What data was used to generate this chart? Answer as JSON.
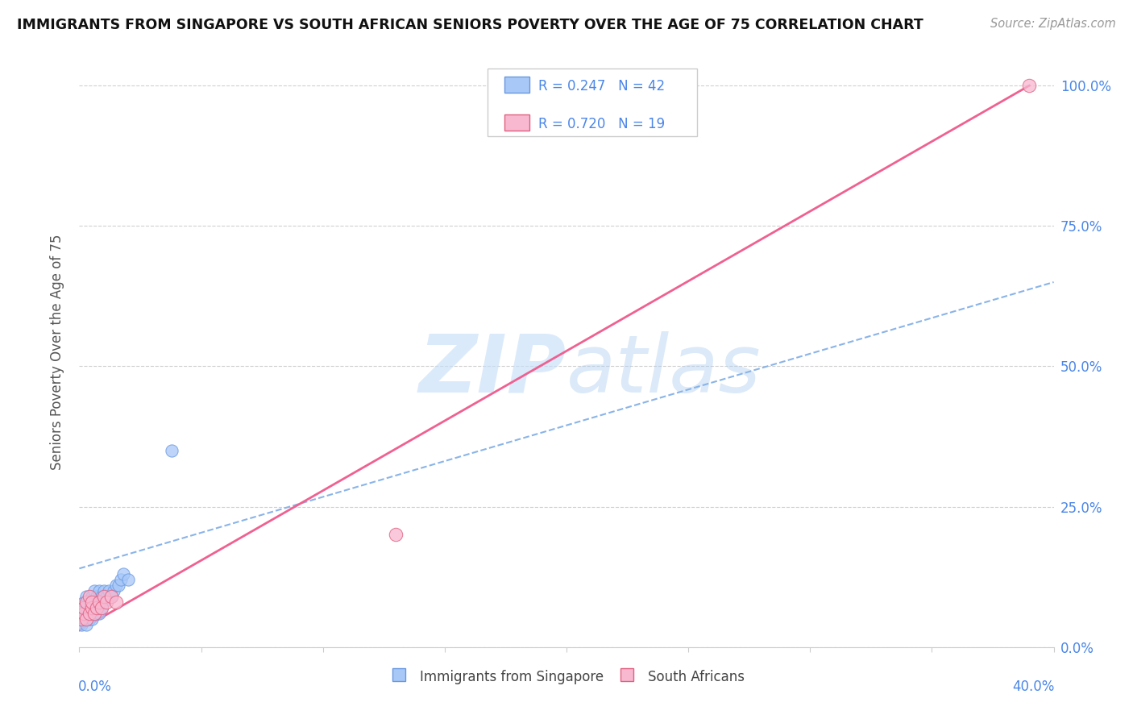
{
  "title": "IMMIGRANTS FROM SINGAPORE VS SOUTH AFRICAN SENIORS POVERTY OVER THE AGE OF 75 CORRELATION CHART",
  "source": "Source: ZipAtlas.com",
  "ylabel": "Seniors Poverty Over the Age of 75",
  "y_tick_vals": [
    0.0,
    0.25,
    0.5,
    0.75,
    1.0
  ],
  "y_tick_labels": [
    "0.0%",
    "25.0%",
    "50.0%",
    "75.0%",
    "100.0%"
  ],
  "xlim": [
    0.0,
    0.4
  ],
  "ylim": [
    0.0,
    1.05
  ],
  "legend_line1": "R = 0.247   N = 42",
  "legend_line2": "R = 0.720   N = 19",
  "color_blue_fill": "#a8c8f8",
  "color_blue_edge": "#6898e0",
  "color_pink_fill": "#f8b8d0",
  "color_pink_edge": "#e06080",
  "color_trend_blue": "#8ab4e8",
  "color_trend_pink": "#f06090",
  "color_axis_label": "#4a86e8",
  "blue_scatter_x": [
    0.001,
    0.001,
    0.002,
    0.002,
    0.002,
    0.003,
    0.003,
    0.003,
    0.003,
    0.003,
    0.004,
    0.004,
    0.004,
    0.004,
    0.005,
    0.005,
    0.005,
    0.005,
    0.006,
    0.006,
    0.006,
    0.006,
    0.007,
    0.007,
    0.007,
    0.008,
    0.008,
    0.008,
    0.009,
    0.009,
    0.01,
    0.01,
    0.011,
    0.012,
    0.013,
    0.014,
    0.015,
    0.016,
    0.017,
    0.018,
    0.02,
    0.038
  ],
  "blue_scatter_y": [
    0.04,
    0.06,
    0.05,
    0.07,
    0.08,
    0.04,
    0.06,
    0.07,
    0.08,
    0.09,
    0.05,
    0.06,
    0.07,
    0.08,
    0.05,
    0.07,
    0.08,
    0.09,
    0.06,
    0.07,
    0.08,
    0.1,
    0.07,
    0.08,
    0.09,
    0.06,
    0.08,
    0.1,
    0.07,
    0.09,
    0.08,
    0.1,
    0.09,
    0.1,
    0.09,
    0.1,
    0.11,
    0.11,
    0.12,
    0.13,
    0.12,
    0.35
  ],
  "pink_scatter_x": [
    0.001,
    0.002,
    0.002,
    0.003,
    0.003,
    0.004,
    0.004,
    0.005,
    0.005,
    0.006,
    0.007,
    0.008,
    0.009,
    0.01,
    0.011,
    0.013,
    0.015,
    0.13,
    0.39
  ],
  "pink_scatter_y": [
    0.05,
    0.06,
    0.07,
    0.05,
    0.08,
    0.06,
    0.09,
    0.07,
    0.08,
    0.06,
    0.07,
    0.08,
    0.07,
    0.09,
    0.08,
    0.09,
    0.08,
    0.2,
    1.0
  ],
  "trend_blue_x0": 0.0,
  "trend_blue_y0": 0.14,
  "trend_blue_x1": 0.4,
  "trend_blue_y1": 0.65,
  "trend_pink_x0": 0.0,
  "trend_pink_y0": 0.03,
  "trend_pink_x1": 0.39,
  "trend_pink_y1": 1.0,
  "watermark_zip": "ZIP",
  "watermark_atlas": "atlas"
}
